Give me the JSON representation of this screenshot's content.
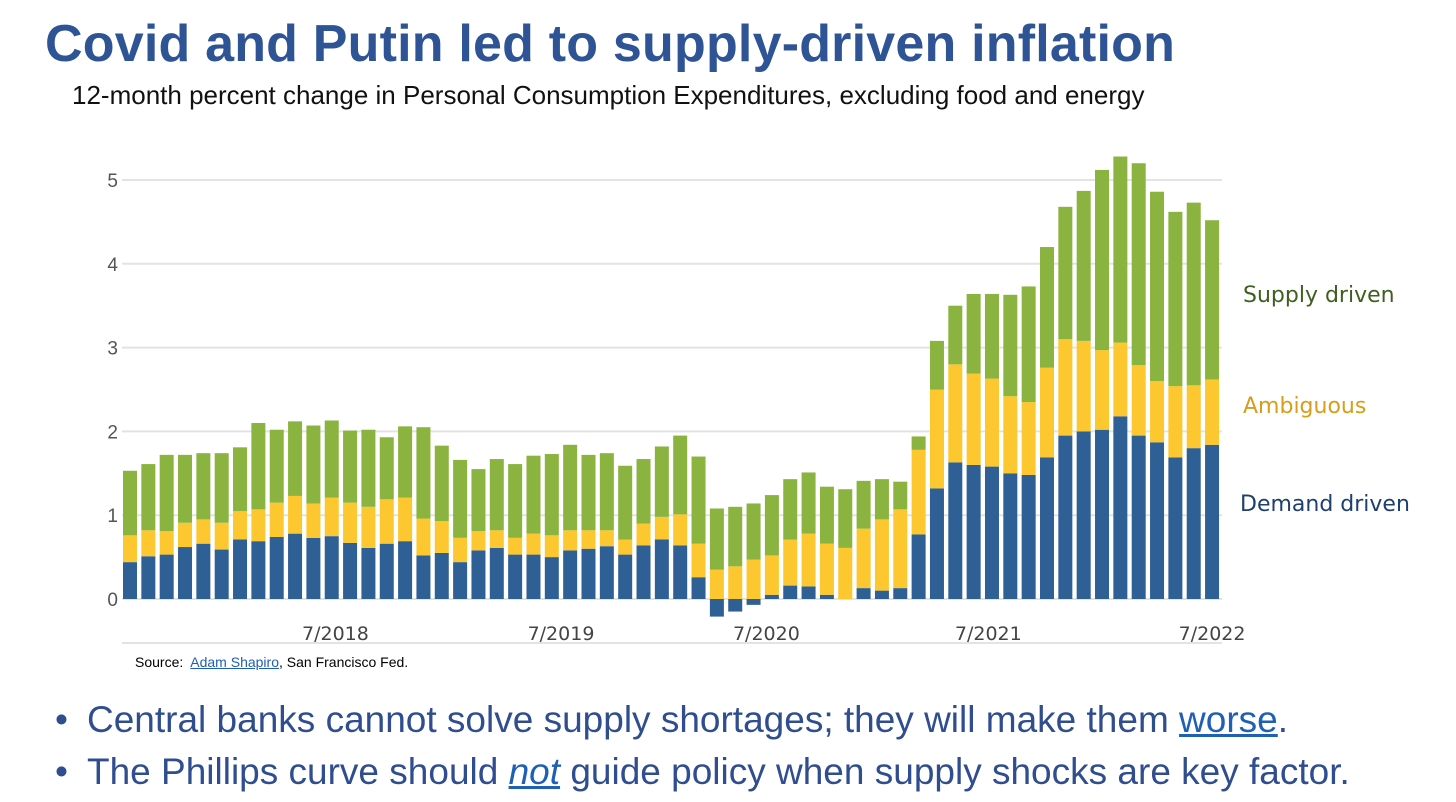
{
  "title": "Covid and Putin led to supply-driven inflation",
  "subtitle": "12-month percent change in Personal Consumption Expenditures, excluding food and energy",
  "source": {
    "prefix": "Source:",
    "link": "Adam Shapiro",
    "suffix": ", San Francisco Fed."
  },
  "bullets": [
    {
      "before": "Central banks cannot solve supply shortages; they will make them ",
      "link": "worse",
      "after": "."
    },
    {
      "before": "The Phillips curve should ",
      "link": "not",
      "after": " guide policy when supply shocks are key factor."
    }
  ],
  "colors": {
    "demand": "#2e6096",
    "ambiguous": "#fcc72f",
    "supply": "#8ab33f",
    "title": "#2f5496"
  },
  "chart_data": {
    "type": "bar",
    "stacked": true,
    "title": "12-month percent change in Personal Consumption Expenditures, excluding food and energy",
    "xlabel": "",
    "ylabel": "",
    "ylim": [
      -0.5,
      5.3
    ],
    "y_ticks": [
      0,
      1,
      2,
      3,
      4,
      5
    ],
    "grid": true,
    "x_ticks": [
      {
        "label": "7/2018",
        "index": 11.2
      },
      {
        "label": "7/2019",
        "index": 23.5
      },
      {
        "label": "7/2020",
        "index": 34.7
      },
      {
        "label": "7/2021",
        "index": 46.8
      },
      {
        "label": "7/2022",
        "index": 59
      }
    ],
    "legend_placement": "right",
    "series": [
      {
        "name": "Demand driven",
        "key": "demand",
        "values": [
          0.44,
          0.51,
          0.53,
          0.62,
          0.66,
          0.59,
          0.71,
          0.69,
          0.74,
          0.78,
          0.73,
          0.75,
          0.67,
          0.61,
          0.66,
          0.69,
          0.52,
          0.55,
          0.44,
          0.58,
          0.61,
          0.53,
          0.53,
          0.5,
          0.58,
          0.6,
          0.63,
          0.53,
          0.64,
          0.71,
          0.64,
          0.26,
          -0.21,
          -0.15,
          -0.07,
          0.05,
          0.16,
          0.15,
          0.05,
          0.0,
          0.13,
          0.1,
          0.13,
          0.77,
          1.32,
          1.63,
          1.6,
          1.58,
          1.5,
          1.48,
          1.69,
          1.95,
          2.0,
          2.02,
          2.18,
          1.95,
          1.87,
          1.69,
          1.8,
          1.84
        ]
      },
      {
        "name": "Ambiguous",
        "key": "ambiguous",
        "values": [
          0.32,
          0.31,
          0.28,
          0.29,
          0.29,
          0.32,
          0.34,
          0.38,
          0.41,
          0.45,
          0.41,
          0.46,
          0.48,
          0.49,
          0.53,
          0.52,
          0.44,
          0.38,
          0.29,
          0.23,
          0.21,
          0.2,
          0.25,
          0.26,
          0.24,
          0.22,
          0.19,
          0.18,
          0.26,
          0.27,
          0.37,
          0.4,
          0.35,
          0.39,
          0.47,
          0.47,
          0.55,
          0.63,
          0.61,
          0.61,
          0.71,
          0.85,
          0.94,
          1.01,
          1.18,
          1.17,
          1.09,
          1.05,
          0.92,
          0.87,
          1.07,
          1.15,
          1.08,
          0.95,
          0.88,
          0.84,
          0.73,
          0.85,
          0.75,
          0.78
        ]
      },
      {
        "name": "Supply driven",
        "key": "supply",
        "values": [
          0.77,
          0.79,
          0.91,
          0.81,
          0.79,
          0.83,
          0.76,
          1.03,
          0.87,
          0.89,
          0.93,
          0.92,
          0.86,
          0.92,
          0.74,
          0.85,
          1.09,
          0.9,
          0.93,
          0.74,
          0.85,
          0.88,
          0.93,
          0.97,
          1.02,
          0.9,
          0.92,
          0.88,
          0.77,
          0.84,
          0.94,
          1.04,
          0.73,
          0.71,
          0.67,
          0.72,
          0.72,
          0.73,
          0.68,
          0.7,
          0.57,
          0.48,
          0.33,
          0.16,
          0.58,
          0.7,
          0.95,
          1.01,
          1.21,
          1.38,
          1.44,
          1.58,
          1.79,
          2.15,
          2.22,
          2.41,
          2.26,
          2.08,
          2.18,
          1.9
        ]
      }
    ]
  }
}
